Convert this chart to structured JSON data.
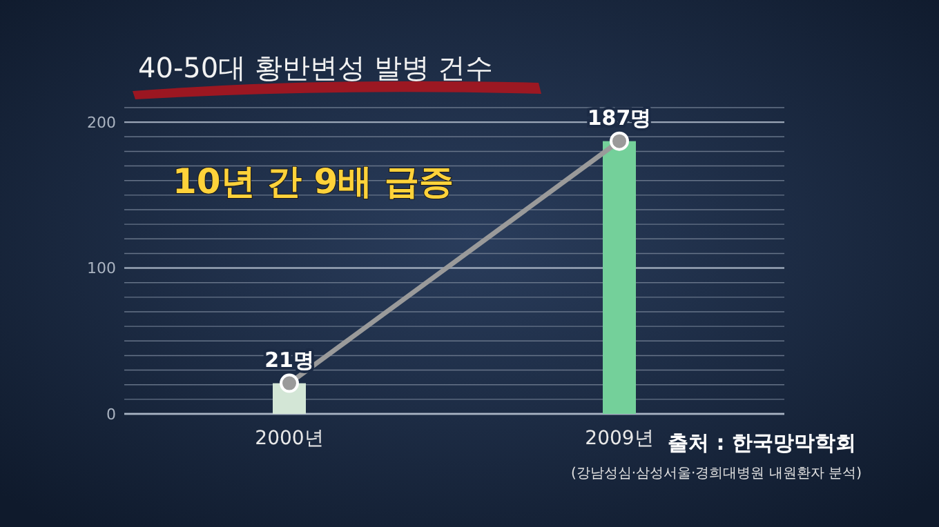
{
  "chart_data": {
    "type": "bar",
    "title": "40-50대 황반변성 발병 건수",
    "categories": [
      "2000년",
      "2009년"
    ],
    "series": [
      {
        "type": "bar",
        "colors": [
          "#d3e6d6",
          "#74d09a"
        ],
        "values": [
          21,
          187
        ],
        "value_labels": [
          "21명",
          "187명"
        ]
      },
      {
        "type": "line",
        "color": "#9a9a9a",
        "marker": "circle",
        "x": [
          "2000년",
          "2009년"
        ],
        "values": [
          21,
          187
        ]
      }
    ],
    "ylim": [
      0,
      210
    ],
    "yticks": [
      0,
      {
        "value": 10,
        "label": null
      },
      {
        "value": 20,
        "label": null
      },
      {
        "value": 30,
        "label": null
      },
      {
        "value": 40,
        "label": null
      },
      {
        "value": 50,
        "label": null
      },
      {
        "value": 60,
        "label": null
      },
      {
        "value": 70,
        "label": null
      },
      {
        "value": 80,
        "label": null
      },
      {
        "value": 90,
        "label": null
      },
      100,
      {
        "value": 110,
        "label": null
      },
      {
        "value": 120,
        "label": null
      },
      {
        "value": 130,
        "label": null
      },
      {
        "value": 140,
        "label": null
      },
      {
        "value": 150,
        "label": null
      },
      {
        "value": 160,
        "label": null
      },
      {
        "value": 170,
        "label": null
      },
      {
        "value": 180,
        "label": null
      },
      {
        "value": 190,
        "label": null
      },
      200,
      {
        "value": 210,
        "label": null
      }
    ],
    "grid": true,
    "annotations": [
      "10년 간 9배 급증",
      "출처 : 한국망막학회",
      "(강남성심·삼성서울·경희대병원 내원환자 분석)"
    ]
  }
}
